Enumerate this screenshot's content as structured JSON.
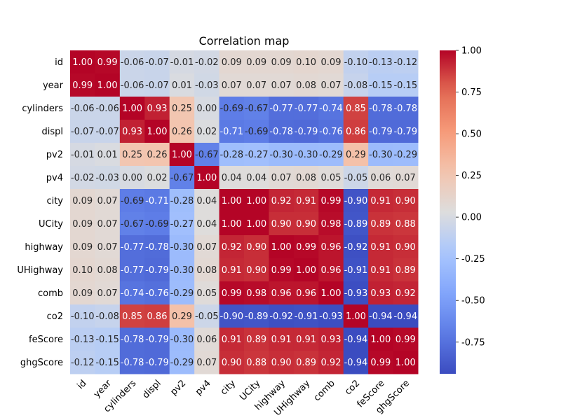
{
  "chart_data": {
    "type": "heatmap",
    "title": "Correlation map",
    "xlabel": "",
    "ylabel": "",
    "labels": [
      "id",
      "year",
      "cylinders",
      "displ",
      "pv2",
      "pv4",
      "city",
      "UCity",
      "highway",
      "UHighway",
      "comb",
      "co2",
      "feScore",
      "ghgScore"
    ],
    "values": [
      [
        1.0,
        0.99,
        -0.06,
        -0.07,
        -0.01,
        -0.02,
        0.09,
        0.09,
        0.09,
        0.1,
        0.09,
        -0.1,
        -0.13,
        -0.12
      ],
      [
        0.99,
        1.0,
        -0.06,
        -0.07,
        0.01,
        -0.03,
        0.07,
        0.07,
        0.07,
        0.08,
        0.07,
        -0.08,
        -0.15,
        -0.15
      ],
      [
        -0.06,
        -0.06,
        1.0,
        0.93,
        0.25,
        -0.0,
        -0.69,
        -0.67,
        -0.77,
        -0.77,
        -0.74,
        0.85,
        -0.78,
        -0.78
      ],
      [
        -0.07,
        -0.07,
        0.93,
        1.0,
        0.26,
        0.02,
        -0.71,
        -0.69,
        -0.78,
        -0.79,
        -0.76,
        0.86,
        -0.79,
        -0.79
      ],
      [
        -0.01,
        0.01,
        0.25,
        0.26,
        1.0,
        -0.67,
        -0.28,
        -0.27,
        -0.3,
        -0.3,
        -0.29,
        0.29,
        -0.3,
        -0.29
      ],
      [
        -0.02,
        -0.03,
        -0.0,
        0.02,
        -0.67,
        1.0,
        0.04,
        0.04,
        0.07,
        0.08,
        0.05,
        -0.05,
        0.06,
        0.07
      ],
      [
        0.09,
        0.07,
        -0.69,
        -0.71,
        -0.28,
        0.04,
        1.0,
        1.0,
        0.92,
        0.91,
        0.99,
        -0.9,
        0.91,
        0.9
      ],
      [
        0.09,
        0.07,
        -0.67,
        -0.69,
        -0.27,
        0.04,
        1.0,
        1.0,
        0.9,
        0.9,
        0.98,
        -0.89,
        0.89,
        0.88
      ],
      [
        0.09,
        0.07,
        -0.77,
        -0.78,
        -0.3,
        0.07,
        0.92,
        0.9,
        1.0,
        0.99,
        0.96,
        -0.92,
        0.91,
        0.9
      ],
      [
        0.1,
        0.08,
        -0.77,
        -0.79,
        -0.3,
        0.08,
        0.91,
        0.9,
        0.99,
        1.0,
        0.96,
        -0.91,
        0.91,
        0.89
      ],
      [
        0.09,
        0.07,
        -0.74,
        -0.76,
        -0.29,
        0.05,
        0.99,
        0.98,
        0.96,
        0.96,
        1.0,
        -0.93,
        0.93,
        0.92
      ],
      [
        -0.1,
        -0.08,
        0.85,
        0.86,
        0.29,
        -0.05,
        -0.9,
        -0.89,
        -0.92,
        -0.91,
        -0.93,
        1.0,
        -0.94,
        -0.94
      ],
      [
        -0.13,
        -0.15,
        -0.78,
        -0.79,
        -0.3,
        0.06,
        0.91,
        0.89,
        0.91,
        0.91,
        0.93,
        -0.94,
        1.0,
        0.99
      ],
      [
        -0.12,
        -0.15,
        -0.78,
        -0.79,
        -0.29,
        0.07,
        0.9,
        0.88,
        0.9,
        0.89,
        0.92,
        -0.94,
        0.99,
        1.0
      ]
    ],
    "colorscale": "coolwarm",
    "vmin": -0.94,
    "vmax": 1.0,
    "colorbar_ticks": [
      "-0.75",
      "-0.50",
      "-0.25",
      "0.00",
      "0.25",
      "0.50",
      "0.75",
      "1.00"
    ],
    "grid": false,
    "legend": "right colorbar"
  }
}
